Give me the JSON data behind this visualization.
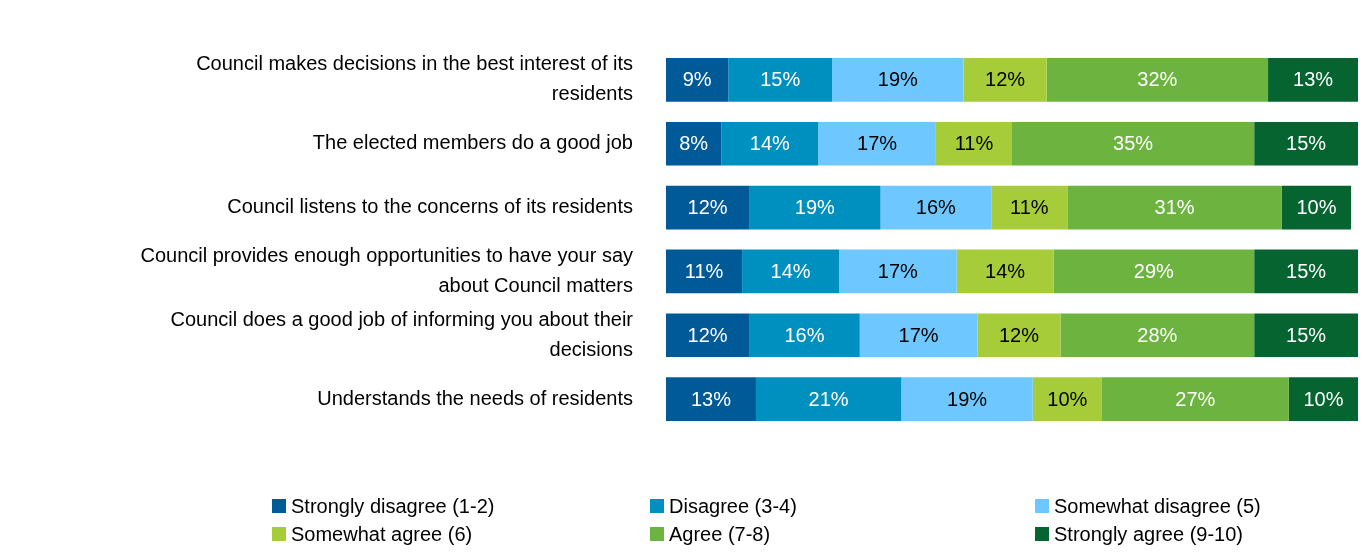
{
  "chart_data": {
    "type": "bar",
    "orientation": "horizontal",
    "stacked": true,
    "tick_labels": "y",
    "legend": "bottom",
    "xlim": [
      0,
      100
    ],
    "categories": [
      "Council makes decisions in the best interest of its residents",
      "The elected members do a good job",
      "Council listens to the concerns of its residents",
      "Council provides enough opportunities to have your say about Council matters",
      "Council does a good job of informing you about their decisions",
      "Understands the needs of residents"
    ],
    "series": [
      {
        "name": "Strongly disagree (1-2)",
        "color": "#005a98",
        "values": [
          9,
          8,
          12,
          11,
          12,
          13
        ],
        "value_labels": [
          "9%",
          "8%",
          "12%",
          "11%",
          "12%",
          "13%"
        ]
      },
      {
        "name": "Disagree (3-4)",
        "color": "#0090c0",
        "values": [
          15,
          14,
          19,
          14,
          16,
          21
        ],
        "value_labels": [
          "15%",
          "14%",
          "19%",
          "14%",
          "16%",
          "21%"
        ]
      },
      {
        "name": "Somewhat disagree (5)",
        "color": "#6fc7ff",
        "values": [
          19,
          17,
          16,
          17,
          17,
          19
        ],
        "value_labels": [
          "19%",
          "17%",
          "16%",
          "17%",
          "17%",
          "19%"
        ]
      },
      {
        "name": "Somewhat agree (6)",
        "color": "#a6cc3a",
        "values": [
          12,
          11,
          11,
          14,
          12,
          10
        ],
        "value_labels": [
          "12%",
          "11%",
          "11%",
          "14%",
          "12%",
          "10%"
        ]
      },
      {
        "name": "Agree (7-8)",
        "color": "#6db33f",
        "values": [
          32,
          35,
          31,
          29,
          28,
          27
        ],
        "value_labels": [
          "32%",
          "35%",
          "31%",
          "29%",
          "28%",
          "27%"
        ]
      },
      {
        "name": "Strongly agree (9-10)",
        "color": "#056430",
        "values": [
          13,
          15,
          10,
          15,
          15,
          10
        ],
        "value_labels": [
          "13%",
          "15%",
          "10%",
          "15%",
          "15%",
          "10%"
        ]
      }
    ]
  }
}
